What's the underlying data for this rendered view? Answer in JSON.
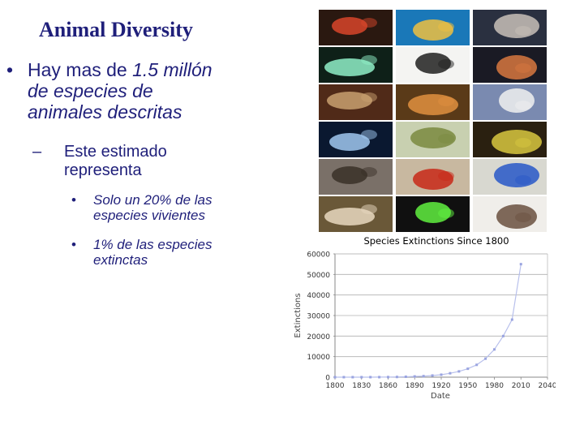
{
  "slide": {
    "title": "Animal Diversity",
    "bullet1": {
      "marker": "•",
      "prefix": "Hay mas de ",
      "emphasis": "1.5 millón",
      "line2": "de especies de",
      "line3": "animales descritas"
    },
    "sub_bullet": {
      "marker": "–",
      "line1": "Este estimado",
      "line2": "representa"
    },
    "sub_sub_bullets": [
      {
        "marker": "•",
        "line1": "Solo un 20% de las",
        "line2": "especies vivientes"
      },
      {
        "marker": "•",
        "line1": "1% de las especies",
        "line2": "extinctas"
      }
    ]
  },
  "photo_grid": {
    "tiles": [
      {
        "name": "starfish-photo",
        "bg": "#2a1810",
        "fg": "#d8452a"
      },
      {
        "name": "coral-fish-photo",
        "bg": "#1a78b8",
        "fg": "#f0c040"
      },
      {
        "name": "cuttlefish-photo",
        "bg": "#2a3040",
        "fg": "#c8c0b8"
      },
      {
        "name": "jellyfish-photo",
        "bg": "#0e2018",
        "fg": "#8ff0c8"
      },
      {
        "name": "spotted-beetle-photo",
        "bg": "#f4f4f2",
        "fg": "#202020"
      },
      {
        "name": "worm-photo",
        "bg": "#1a1a24",
        "fg": "#d87840"
      },
      {
        "name": "tube-worm-photo",
        "bg": "#502a18",
        "fg": "#c8a070"
      },
      {
        "name": "tiger-photo",
        "bg": "#5a3a18",
        "fg": "#e09040"
      },
      {
        "name": "sea-slug-photo",
        "bg": "#7a8ab0",
        "fg": "#f0f0f0"
      },
      {
        "name": "plankton-photo",
        "bg": "#0a1830",
        "fg": "#a0c8f0"
      },
      {
        "name": "mantis-photo",
        "bg": "#c8d0b0",
        "fg": "#7a8a40"
      },
      {
        "name": "eel-photo",
        "bg": "#2a2010",
        "fg": "#d8c840"
      },
      {
        "name": "crab-photo",
        "bg": "#7a7068",
        "fg": "#3a3028"
      },
      {
        "name": "red-flatworm-photo",
        "bg": "#c8b8a0",
        "fg": "#c82818"
      },
      {
        "name": "blue-jay-photo",
        "bg": "#d8d8d0",
        "fg": "#2858c8"
      },
      {
        "name": "spider-photo",
        "bg": "#6a5838",
        "fg": "#e8d8c0"
      },
      {
        "name": "slug-photo",
        "bg": "#101010",
        "fg": "#60f040"
      },
      {
        "name": "frog-photo",
        "bg": "#f0eeea",
        "fg": "#6a5040"
      }
    ]
  },
  "chart_data": {
    "type": "line",
    "title": "Species Extinctions Since 1800",
    "xlabel": "Date",
    "ylabel": "Extinctions",
    "x": [
      1800,
      1810,
      1820,
      1830,
      1840,
      1850,
      1860,
      1870,
      1880,
      1890,
      1900,
      1910,
      1920,
      1930,
      1940,
      1950,
      1960,
      1970,
      1980,
      1990,
      2000,
      2010
    ],
    "values": [
      0,
      0,
      0,
      0,
      10,
      20,
      50,
      100,
      200,
      350,
      500,
      800,
      1200,
      1900,
      2800,
      4100,
      6000,
      9000,
      13500,
      20000,
      28000,
      55000
    ],
    "xlim": [
      1800,
      2010
    ],
    "ylim": [
      0,
      60000
    ],
    "xticks": [
      1800,
      1830,
      1860,
      1890,
      1920,
      1950,
      1980,
      2010,
      2040
    ],
    "xtick_labels": [
      "1800",
      "1830",
      "1860",
      "1890",
      "1920",
      "1950",
      "1980",
      "2010",
      "2040"
    ],
    "yticks": [
      0,
      10000,
      20000,
      30000,
      40000,
      50000,
      60000
    ],
    "ytick_labels": [
      "0",
      "10000",
      "20000",
      "30000",
      "40000",
      "50000",
      "60000"
    ],
    "grid": true,
    "colors": {
      "line": "#b8c0ec",
      "marker": "#9aa4e0",
      "grid": "#b0b0b0"
    }
  }
}
